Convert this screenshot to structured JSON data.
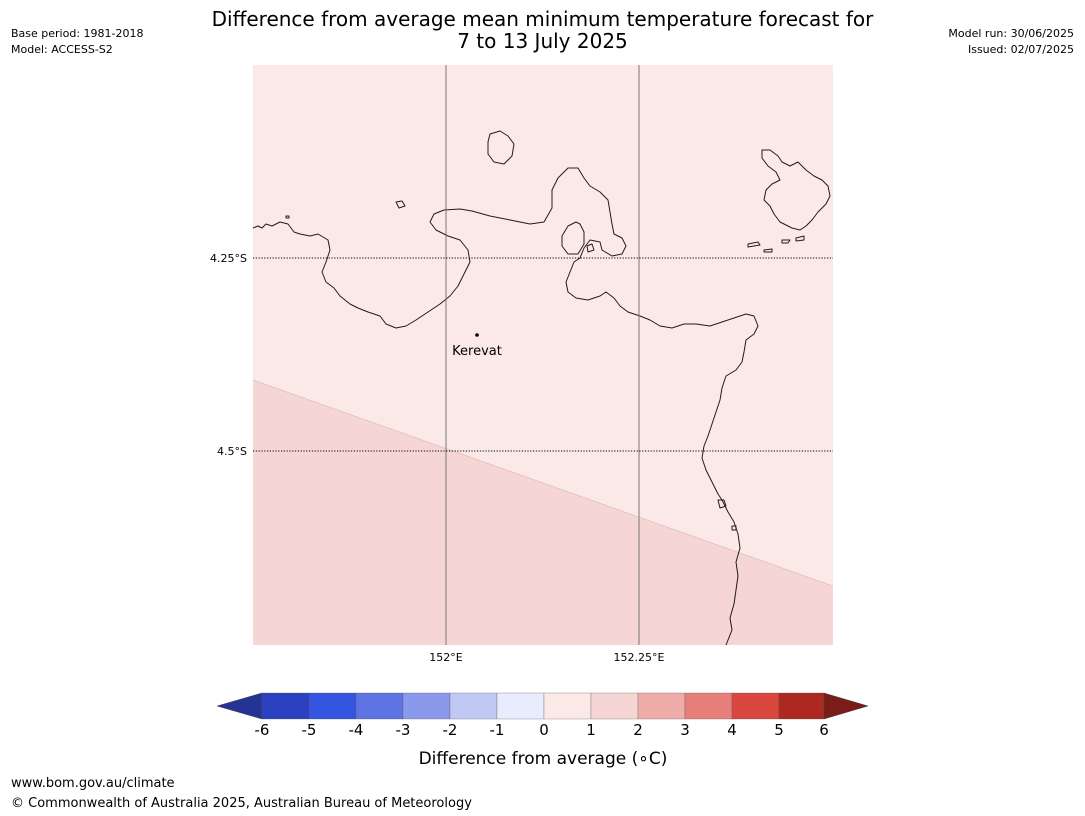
{
  "header": {
    "base_period": "Base period: 1981-2018",
    "model": "Model: ACCESS-S2",
    "title_line1": "Difference from average mean minimum temperature forecast for",
    "title_line2": "7 to 13 July 2025",
    "model_run": "Model run: 30/06/2025",
    "issued": "Issued: 02/07/2025"
  },
  "map": {
    "lat_labels": [
      "4.25°S",
      "4.5°S"
    ],
    "lon_labels": [
      "152°E",
      "152.25°E"
    ],
    "place_label": "Kerevat",
    "zones": [
      {
        "range": "0 to 1",
        "color": "#fbe9e7"
      },
      {
        "range": "1 to 2",
        "color": "#f6d6d4"
      }
    ],
    "coastline_color": "#231a1a",
    "gridline_color": "#777777"
  },
  "colorbar": {
    "ticks": [
      "-6",
      "-5",
      "-4",
      "-3",
      "-2",
      "-1",
      "0",
      "1",
      "2",
      "3",
      "4",
      "5",
      "6"
    ],
    "colors": [
      "#253494",
      "#2a40c0",
      "#3355e0",
      "#5f74e4",
      "#8a99ec",
      "#c0c8f4",
      "#e8ecfc",
      "#fbe9e7",
      "#f6d6d4",
      "#efaca9",
      "#e77f7b",
      "#d9473e",
      "#ad2820",
      "#7a1c18"
    ],
    "title": "Difference from average (∘C)"
  },
  "footer": {
    "url": "www.bom.gov.au/climate",
    "copyright": "© Commonwealth of Australia 2025, Australian Bureau of Meteorology"
  }
}
